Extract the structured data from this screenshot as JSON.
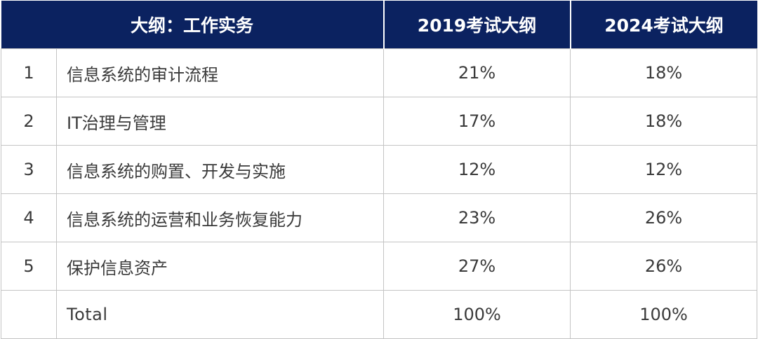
{
  "header": {
    "topic_col": "大纲：工作实务",
    "col_2019": "2019考试大纲",
    "col_2024": "2024考试大纲"
  },
  "rows": [
    {
      "num": "1",
      "topic": "信息系统的审计流程",
      "pct_2019": "21%",
      "pct_2024": "18%"
    },
    {
      "num": "2",
      "topic": "IT治理与管理",
      "pct_2019": "17%",
      "pct_2024": "18%"
    },
    {
      "num": "3",
      "topic": "信息系统的购置、开发与实施",
      "pct_2019": "12%",
      "pct_2024": "12%"
    },
    {
      "num": "4",
      "topic": "信息系统的运营和业务恢复能力",
      "pct_2019": "23%",
      "pct_2024": "26%"
    },
    {
      "num": "5",
      "topic": "保护信息资产",
      "pct_2019": "27%",
      "pct_2024": "26%"
    }
  ],
  "total": {
    "num": "",
    "label": "Total",
    "pct_2019": "100%",
    "pct_2024": "100%"
  },
  "colors": {
    "header_bg": "#0b2260",
    "header_text": "#ffffff",
    "body_text": "#3a3a3a",
    "grid": "#c4c4c4"
  }
}
